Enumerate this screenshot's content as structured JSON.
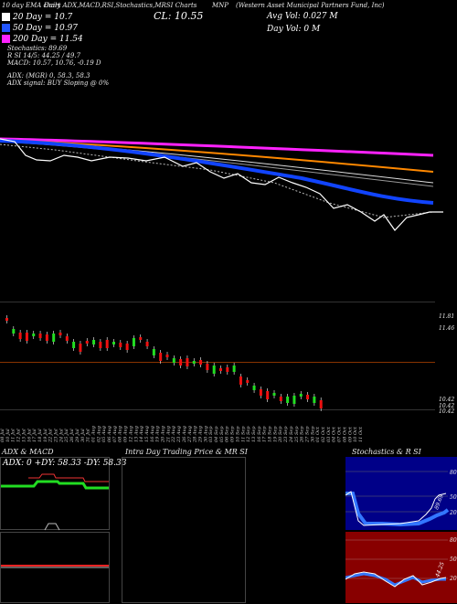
{
  "header": {
    "tagline": "10 day EMA chart",
    "menu": "Daily ADX,MACD,RSI,Stochastics,MRSI Charts",
    "symbol": "MNP",
    "company": "(Western Asset Municipal Partners Fund, Inc)",
    "close": "CL: 10.55",
    "avg_vol": "Avg Vol: 0.027 M",
    "day_vol": "Day Vol: 0   M"
  },
  "legend": [
    {
      "label": "20  Day = 10.7",
      "color": "#ffffff"
    },
    {
      "label": "50  Day = 10.97",
      "color": "#2255ff"
    },
    {
      "label": "200  Day = 11.54",
      "color": "#ff22ff"
    }
  ],
  "indicators": {
    "stochastics": "Stochastics: 89.69",
    "rsi": "R         SI 14/5: 44.25 / 49.7",
    "macd": "MACD: 10.57, 10.76, -0.19 D",
    "adx": "ADX:                    (MGR) 0, 58.3, 58.3",
    "adx_signal": "ADX  signal:                 BUY Sloping @ 0%"
  },
  "price_labels": [
    "11.81",
    "11.46",
    "10.42",
    "10.42",
    "10.42"
  ],
  "x_labels": [
    "08 Jul",
    "10 Jul",
    "11 Jul",
    "12 Jul",
    "15 Jul",
    "16 Jul",
    "17 Jul",
    "18 Jul",
    "19 Jul",
    "22 Jul",
    "23 Jul",
    "24 Jul",
    "25 Jul",
    "26 Jul",
    "29 Jul",
    "30 Jul",
    "31 Jul",
    "01 Aug",
    "02 Aug",
    "05 Aug",
    "06 Aug",
    "07 Aug",
    "08 Aug",
    "09 Aug",
    "12 Aug",
    "13 Aug",
    "14 Aug",
    "15 Aug",
    "16 Aug",
    "19 Aug",
    "20 Aug",
    "21 Aug",
    "22 Aug",
    "23 Aug",
    "26 Aug",
    "27 Aug",
    "28 Aug",
    "29 Aug",
    "30 Aug",
    "03 Sep",
    "04 Sep",
    "05 Sep",
    "06 Sep",
    "09 Sep",
    "10 Sep",
    "11 Sep",
    "12 Sep",
    "13 Sep",
    "16 Sep",
    "17 Sep",
    "18 Sep",
    "19 Sep",
    "20 Sep",
    "23 Sep",
    "24 Sep",
    "25 Sep",
    "26 Sep",
    "27 Sep",
    "30 Sep",
    "01 Oct",
    "02 Oct",
    "03 Oct",
    "04 Oct",
    "07 Oct",
    "08 Oct",
    "09 Oct",
    "10 Oct",
    "11 Oct"
  ],
  "panels": {
    "adx_title": "ADX  & MACD",
    "adx_values": "ADX: 0  +DY: 58.33  -DY: 58.33",
    "intraday_title": "Intra  Day Trading Price  & MR                       SI",
    "stoch_title": "Stochastics & R                    SI",
    "stoch_ticks": [
      "80",
      "50",
      "20"
    ],
    "stoch_value": "89.69",
    "rsi_ticks": [
      "80",
      "50",
      "20"
    ],
    "rsi_value": "44.25"
  },
  "colors": {
    "up": "#22dd22",
    "down": "#ee1111",
    "blue": "#1144ff",
    "magenta": "#ff22ff",
    "orange": "#ff8800",
    "stoch_bg": "#000088",
    "rsi_bg": "#880000"
  }
}
